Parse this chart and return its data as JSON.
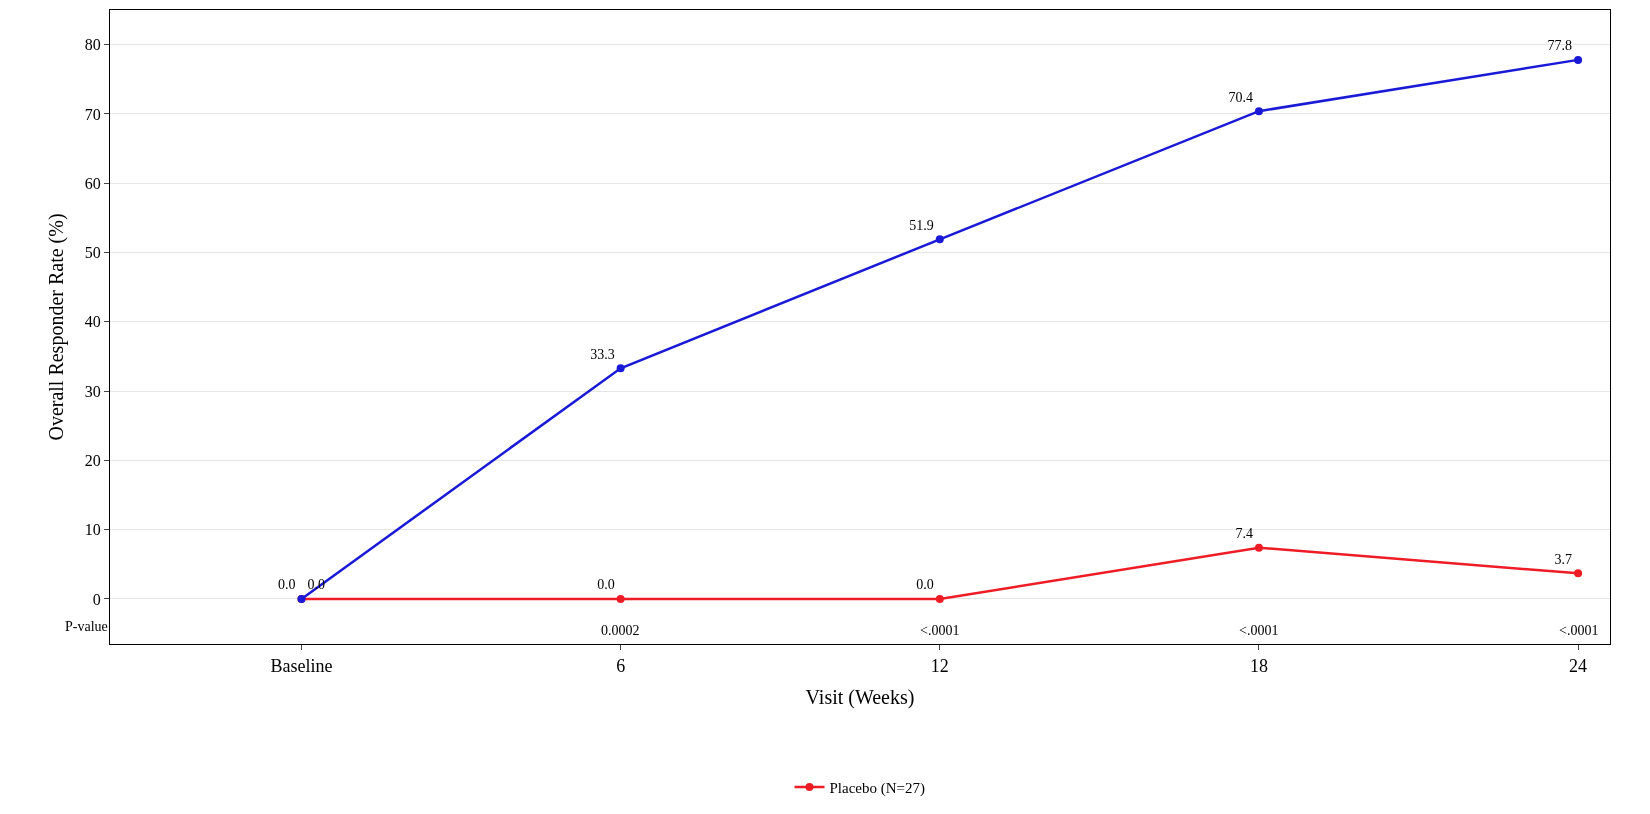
{
  "chart_data": {
    "type": "line",
    "xlabel": "Visit (Weeks)",
    "ylabel": "Overall Responder Rate (%)",
    "categories": [
      "Baseline",
      "6",
      "12",
      "18",
      "24"
    ],
    "series": [
      {
        "name": "Placebo (N=27)",
        "color": "#ee1c25",
        "values": [
          0.0,
          0.0,
          0.0,
          7.4,
          3.7
        ],
        "value_labels": [
          "0.0",
          "0.0",
          "0.0",
          "7.4",
          "3.7"
        ]
      },
      {
        "color": "#1a1ad6",
        "values": [
          0.0,
          33.3,
          51.9,
          70.4,
          77.8
        ],
        "value_labels": [
          "0.0",
          "33.3",
          "51.9",
          "70.4",
          "77.8"
        ]
      }
    ],
    "ylim": [
      -6.5,
      85
    ],
    "yticks": [
      0,
      10,
      20,
      30,
      40,
      50,
      60,
      70,
      80
    ],
    "grid": "y",
    "legend": "bottom",
    "marker": "circle",
    "line_style": "solid",
    "annotations": [
      "P-value",
      "0.0002",
      "<.0001",
      "<.0001",
      "<.0001"
    ]
  }
}
